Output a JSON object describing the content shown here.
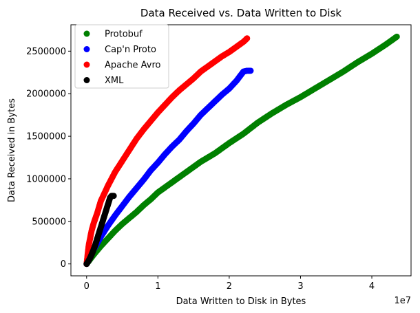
{
  "chart_data": {
    "type": "scatter",
    "title": "Data Received vs. Data Written to Disk",
    "xlabel": "Data Written to Disk in Bytes",
    "ylabel": "Data Received in Bytes",
    "x_offset_text": "1e7",
    "x_scale": 10000000,
    "xlim": [
      -2200000,
      45500000
    ],
    "ylim": [
      -140000,
      2810000
    ],
    "x_ticks": [
      0,
      10000000,
      20000000,
      30000000,
      40000000
    ],
    "x_tick_labels": [
      "0",
      "1",
      "2",
      "3",
      "4"
    ],
    "y_ticks": [
      0,
      500000,
      1000000,
      1500000,
      2000000,
      2500000
    ],
    "y_tick_labels": [
      "0",
      "500000",
      "1000000",
      "1500000",
      "2000000",
      "2500000"
    ],
    "legend_position": "upper-left",
    "series": [
      {
        "name": "Protobuf",
        "color": "#008000",
        "x": [
          0,
          1000000,
          2000000,
          3000000,
          4000000,
          5000000,
          6000000,
          7000000,
          8000000,
          9000000,
          10000000,
          12000000,
          14000000,
          16000000,
          18000000,
          20000000,
          22000000,
          24000000,
          26000000,
          28000000,
          30000000,
          32000000,
          34000000,
          36000000,
          38000000,
          40000000,
          42000000,
          43500000
        ],
        "y": [
          0,
          110000,
          210000,
          300000,
          390000,
          470000,
          540000,
          610000,
          690000,
          760000,
          840000,
          960000,
          1080000,
          1200000,
          1300000,
          1420000,
          1530000,
          1660000,
          1770000,
          1870000,
          1960000,
          2060000,
          2160000,
          2260000,
          2370000,
          2470000,
          2580000,
          2670000
        ]
      },
      {
        "name": "Cap'n Proto",
        "color": "#0000ff",
        "x": [
          0,
          1000000,
          2000000,
          3000000,
          4000000,
          5000000,
          6000000,
          7000000,
          8000000,
          9000000,
          10000000,
          11000000,
          12000000,
          13000000,
          14000000,
          15000000,
          16000000,
          17000000,
          18000000,
          19000000,
          20000000,
          21000000,
          22000000,
          22500000,
          23000000
        ],
        "y": [
          0,
          170000,
          320000,
          450000,
          570000,
          680000,
          790000,
          890000,
          990000,
          1100000,
          1190000,
          1290000,
          1380000,
          1460000,
          1560000,
          1650000,
          1750000,
          1830000,
          1910000,
          1990000,
          2060000,
          2150000,
          2260000,
          2270000,
          2270000
        ]
      },
      {
        "name": "Apache Avro",
        "color": "#ff0000",
        "x": [
          0,
          300000,
          700000,
          1000000,
          1500000,
          2000000,
          3000000,
          4000000,
          5000000,
          6000000,
          7000000,
          8000000,
          9000000,
          10000000,
          11000000,
          12000000,
          13000000,
          14000000,
          15000000,
          16000000,
          17000000,
          18000000,
          19000000,
          20000000,
          21000000,
          22000000,
          22500000
        ],
        "y": [
          0,
          220000,
          390000,
          480000,
          600000,
          740000,
          920000,
          1080000,
          1210000,
          1340000,
          1470000,
          1580000,
          1680000,
          1780000,
          1870000,
          1960000,
          2040000,
          2110000,
          2180000,
          2260000,
          2320000,
          2380000,
          2440000,
          2490000,
          2550000,
          2610000,
          2650000
        ]
      },
      {
        "name": "XML",
        "color": "#000000",
        "x": [
          0,
          300000,
          600000,
          900000,
          1200000,
          1500000,
          1800000,
          2100000,
          2400000,
          2700000,
          3000000,
          3300000,
          3500000,
          3800000
        ],
        "y": [
          0,
          40000,
          90000,
          150000,
          220000,
          300000,
          380000,
          460000,
          540000,
          620000,
          700000,
          780000,
          800000,
          800000
        ]
      }
    ]
  }
}
